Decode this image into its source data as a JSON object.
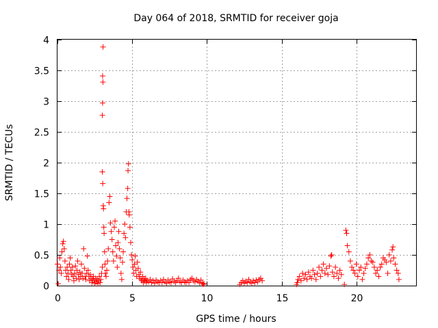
{
  "chart_data": {
    "type": "scatter",
    "title": "Day 064 of 2018, SRMTID for receiver goja",
    "xlabel": "GPS time / hours",
    "ylabel": "SRMTID / TECUs",
    "xlim": [
      0,
      24
    ],
    "ylim": [
      0,
      4
    ],
    "xticks": [
      0,
      5,
      10,
      15,
      20
    ],
    "yticks": [
      0,
      0.5,
      1,
      1.5,
      2,
      2.5,
      3,
      3.5,
      4
    ],
    "xtick_labels": [
      "0",
      "5",
      "10",
      "15",
      "20"
    ],
    "ytick_labels": [
      "0",
      "0.5",
      "1",
      "1.5",
      "2",
      "2.5",
      "3",
      "3.5",
      "4"
    ],
    "grid": true,
    "marker": "+",
    "color": "#ff0000",
    "series": [
      {
        "name": "SRMTID",
        "points": [
          [
            0.0,
            0.35
          ],
          [
            0.05,
            0.03
          ],
          [
            0.1,
            0.25
          ],
          [
            0.15,
            0.45
          ],
          [
            0.2,
            0.3
          ],
          [
            0.25,
            0.2
          ],
          [
            0.3,
            0.55
          ],
          [
            0.35,
            0.68
          ],
          [
            0.4,
            0.72
          ],
          [
            0.45,
            0.6
          ],
          [
            0.5,
            0.4
          ],
          [
            0.55,
            0.25
          ],
          [
            0.6,
            0.15
          ],
          [
            0.65,
            0.3
          ],
          [
            0.7,
            0.2
          ],
          [
            0.75,
            0.1
          ],
          [
            0.8,
            0.35
          ],
          [
            0.85,
            0.45
          ],
          [
            0.9,
            0.25
          ],
          [
            0.95,
            0.18
          ],
          [
            1.0,
            0.3
          ],
          [
            1.05,
            0.15
          ],
          [
            1.1,
            0.08
          ],
          [
            1.15,
            0.2
          ],
          [
            1.2,
            0.32
          ],
          [
            1.25,
            0.12
          ],
          [
            1.3,
            0.25
          ],
          [
            1.35,
            0.4
          ],
          [
            1.4,
            0.18
          ],
          [
            1.45,
            0.1
          ],
          [
            1.5,
            0.22
          ],
          [
            1.55,
            0.15
          ],
          [
            1.6,
            0.35
          ],
          [
            1.65,
            0.2
          ],
          [
            1.7,
            0.12
          ],
          [
            1.75,
            0.6
          ],
          [
            1.8,
            0.28
          ],
          [
            1.85,
            0.15
          ],
          [
            1.9,
            0.1
          ],
          [
            1.95,
            0.2
          ],
          [
            2.0,
            0.48
          ],
          [
            2.05,
            0.25
          ],
          [
            2.1,
            0.15
          ],
          [
            2.15,
            0.08
          ],
          [
            2.2,
            0.18
          ],
          [
            2.25,
            0.12
          ],
          [
            2.3,
            0.05
          ],
          [
            2.35,
            0.1
          ],
          [
            2.4,
            0.15
          ],
          [
            2.45,
            0.08
          ],
          [
            2.5,
            0.04
          ],
          [
            2.55,
            0.12
          ],
          [
            2.6,
            0.06
          ],
          [
            2.65,
            0.1
          ],
          [
            2.7,
            0.03
          ],
          [
            2.75,
            0.08
          ],
          [
            2.8,
            0.15
          ],
          [
            2.85,
            0.05
          ],
          [
            2.9,
            0.1
          ],
          [
            2.95,
            0.2
          ],
          [
            3.0,
            0.3
          ],
          [
            3.0,
            2.77
          ],
          [
            3.02,
            2.97
          ],
          [
            3.04,
            3.31
          ],
          [
            3.02,
            3.41
          ],
          [
            3.05,
            3.88
          ],
          [
            3.0,
            1.85
          ],
          [
            3.03,
            1.66
          ],
          [
            3.06,
            1.3
          ],
          [
            3.08,
            1.25
          ],
          [
            3.1,
            0.95
          ],
          [
            3.12,
            0.85
          ],
          [
            3.15,
            0.55
          ],
          [
            3.18,
            0.35
          ],
          [
            3.2,
            0.2
          ],
          [
            3.25,
            0.15
          ],
          [
            3.3,
            0.25
          ],
          [
            3.35,
            0.4
          ],
          [
            3.4,
            0.6
          ],
          [
            3.45,
            1.35
          ],
          [
            3.5,
            1.45
          ],
          [
            3.55,
            1.02
          ],
          [
            3.6,
            0.88
          ],
          [
            3.65,
            0.75
          ],
          [
            3.7,
            0.55
          ],
          [
            3.75,
            0.4
          ],
          [
            3.8,
            0.95
          ],
          [
            3.85,
            1.05
          ],
          [
            3.9,
            0.65
          ],
          [
            3.95,
            0.48
          ],
          [
            4.0,
            0.3
          ],
          [
            4.05,
            0.7
          ],
          [
            4.1,
            0.88
          ],
          [
            4.15,
            0.6
          ],
          [
            4.2,
            0.45
          ],
          [
            4.25,
            0.2
          ],
          [
            4.3,
            0.1
          ],
          [
            4.35,
            0.38
          ],
          [
            4.4,
            0.55
          ],
          [
            4.45,
            0.85
          ],
          [
            4.5,
            1.0
          ],
          [
            4.55,
            0.78
          ],
          [
            4.6,
            1.2
          ],
          [
            4.65,
            1.42
          ],
          [
            4.7,
            1.58
          ],
          [
            4.72,
            1.87
          ],
          [
            4.75,
            1.98
          ],
          [
            4.78,
            1.2
          ],
          [
            4.8,
            1.15
          ],
          [
            4.85,
            0.95
          ],
          [
            4.9,
            0.7
          ],
          [
            4.95,
            0.5
          ],
          [
            5.0,
            0.42
          ],
          [
            5.05,
            0.3
          ],
          [
            5.1,
            0.2
          ],
          [
            5.15,
            0.35
          ],
          [
            5.2,
            0.48
          ],
          [
            5.25,
            0.25
          ],
          [
            5.3,
            0.15
          ],
          [
            5.35,
            0.38
          ],
          [
            5.4,
            0.28
          ],
          [
            5.45,
            0.18
          ],
          [
            5.5,
            0.12
          ],
          [
            5.55,
            0.22
          ],
          [
            5.6,
            0.1
          ],
          [
            5.65,
            0.08
          ],
          [
            5.7,
            0.15
          ],
          [
            5.75,
            0.05
          ],
          [
            5.8,
            0.1
          ],
          [
            5.85,
            0.07
          ],
          [
            5.9,
            0.12
          ],
          [
            5.95,
            0.05
          ],
          [
            6.0,
            0.08
          ],
          [
            6.1,
            0.06
          ],
          [
            6.2,
            0.1
          ],
          [
            6.3,
            0.05
          ],
          [
            6.4,
            0.08
          ],
          [
            6.5,
            0.04
          ],
          [
            6.6,
            0.09
          ],
          [
            6.7,
            0.06
          ],
          [
            6.8,
            0.05
          ],
          [
            6.9,
            0.08
          ],
          [
            7.0,
            0.05
          ],
          [
            7.1,
            0.1
          ],
          [
            7.2,
            0.06
          ],
          [
            7.3,
            0.04
          ],
          [
            7.4,
            0.09
          ],
          [
            7.5,
            0.06
          ],
          [
            7.6,
            0.05
          ],
          [
            7.7,
            0.11
          ],
          [
            7.8,
            0.07
          ],
          [
            7.9,
            0.05
          ],
          [
            8.0,
            0.08
          ],
          [
            8.1,
            0.12
          ],
          [
            8.2,
            0.06
          ],
          [
            8.3,
            0.05
          ],
          [
            8.4,
            0.09
          ],
          [
            8.5,
            0.06
          ],
          [
            8.6,
            0.05
          ],
          [
            8.7,
            0.08
          ],
          [
            8.8,
            0.05
          ],
          [
            8.9,
            0.1
          ],
          [
            9.0,
            0.12
          ],
          [
            9.1,
            0.08
          ],
          [
            9.2,
            0.06
          ],
          [
            9.3,
            0.1
          ],
          [
            9.4,
            0.07
          ],
          [
            9.5,
            0.05
          ],
          [
            9.6,
            0.09
          ],
          [
            9.7,
            0.04
          ],
          [
            9.75,
            0.02
          ],
          [
            9.8,
            0.03
          ],
          [
            12.2,
            0.02
          ],
          [
            12.3,
            0.05
          ],
          [
            12.4,
            0.08
          ],
          [
            12.5,
            0.04
          ],
          [
            12.6,
            0.07
          ],
          [
            12.7,
            0.05
          ],
          [
            12.8,
            0.1
          ],
          [
            12.9,
            0.06
          ],
          [
            13.0,
            0.04
          ],
          [
            13.1,
            0.08
          ],
          [
            13.2,
            0.05
          ],
          [
            13.3,
            0.09
          ],
          [
            13.4,
            0.06
          ],
          [
            13.5,
            0.1
          ],
          [
            13.6,
            0.12
          ],
          [
            13.7,
            0.08
          ],
          [
            16.0,
            0.02
          ],
          [
            16.05,
            0.05
          ],
          [
            16.1,
            0.1
          ],
          [
            16.2,
            0.15
          ],
          [
            16.3,
            0.08
          ],
          [
            16.4,
            0.2
          ],
          [
            16.5,
            0.12
          ],
          [
            16.6,
            0.18
          ],
          [
            16.7,
            0.1
          ],
          [
            16.8,
            0.22
          ],
          [
            16.9,
            0.15
          ],
          [
            17.0,
            0.12
          ],
          [
            17.1,
            0.25
          ],
          [
            17.2,
            0.18
          ],
          [
            17.3,
            0.1
          ],
          [
            17.4,
            0.2
          ],
          [
            17.5,
            0.3
          ],
          [
            17.6,
            0.15
          ],
          [
            17.7,
            0.25
          ],
          [
            17.8,
            0.35
          ],
          [
            17.9,
            0.2
          ],
          [
            18.0,
            0.28
          ],
          [
            18.1,
            0.18
          ],
          [
            18.2,
            0.32
          ],
          [
            18.3,
            0.48
          ],
          [
            18.35,
            0.5
          ],
          [
            18.4,
            0.22
          ],
          [
            18.5,
            0.15
          ],
          [
            18.6,
            0.3
          ],
          [
            18.7,
            0.2
          ],
          [
            18.8,
            0.12
          ],
          [
            18.9,
            0.25
          ],
          [
            19.0,
            0.18
          ],
          [
            19.2,
            0.02
          ],
          [
            19.3,
            0.9
          ],
          [
            19.35,
            0.85
          ],
          [
            19.4,
            0.65
          ],
          [
            19.5,
            0.55
          ],
          [
            19.6,
            0.4
          ],
          [
            19.7,
            0.3
          ],
          [
            19.8,
            0.25
          ],
          [
            19.9,
            0.2
          ],
          [
            20.0,
            0.35
          ],
          [
            20.1,
            0.15
          ],
          [
            20.2,
            0.25
          ],
          [
            20.3,
            0.3
          ],
          [
            20.4,
            0.1
          ],
          [
            20.5,
            0.2
          ],
          [
            20.6,
            0.28
          ],
          [
            20.7,
            0.35
          ],
          [
            20.8,
            0.45
          ],
          [
            20.9,
            0.5
          ],
          [
            21.0,
            0.4
          ],
          [
            21.1,
            0.38
          ],
          [
            21.2,
            0.3
          ],
          [
            21.3,
            0.2
          ],
          [
            21.4,
            0.25
          ],
          [
            21.5,
            0.15
          ],
          [
            21.6,
            0.3
          ],
          [
            21.7,
            0.35
          ],
          [
            21.8,
            0.45
          ],
          [
            21.9,
            0.42
          ],
          [
            22.0,
            0.38
          ],
          [
            22.1,
            0.2
          ],
          [
            22.2,
            0.5
          ],
          [
            22.3,
            0.4
          ],
          [
            22.4,
            0.58
          ],
          [
            22.45,
            0.63
          ],
          [
            22.5,
            0.45
          ],
          [
            22.6,
            0.35
          ],
          [
            22.7,
            0.25
          ],
          [
            22.8,
            0.2
          ],
          [
            22.85,
            0.1
          ]
        ]
      }
    ]
  }
}
